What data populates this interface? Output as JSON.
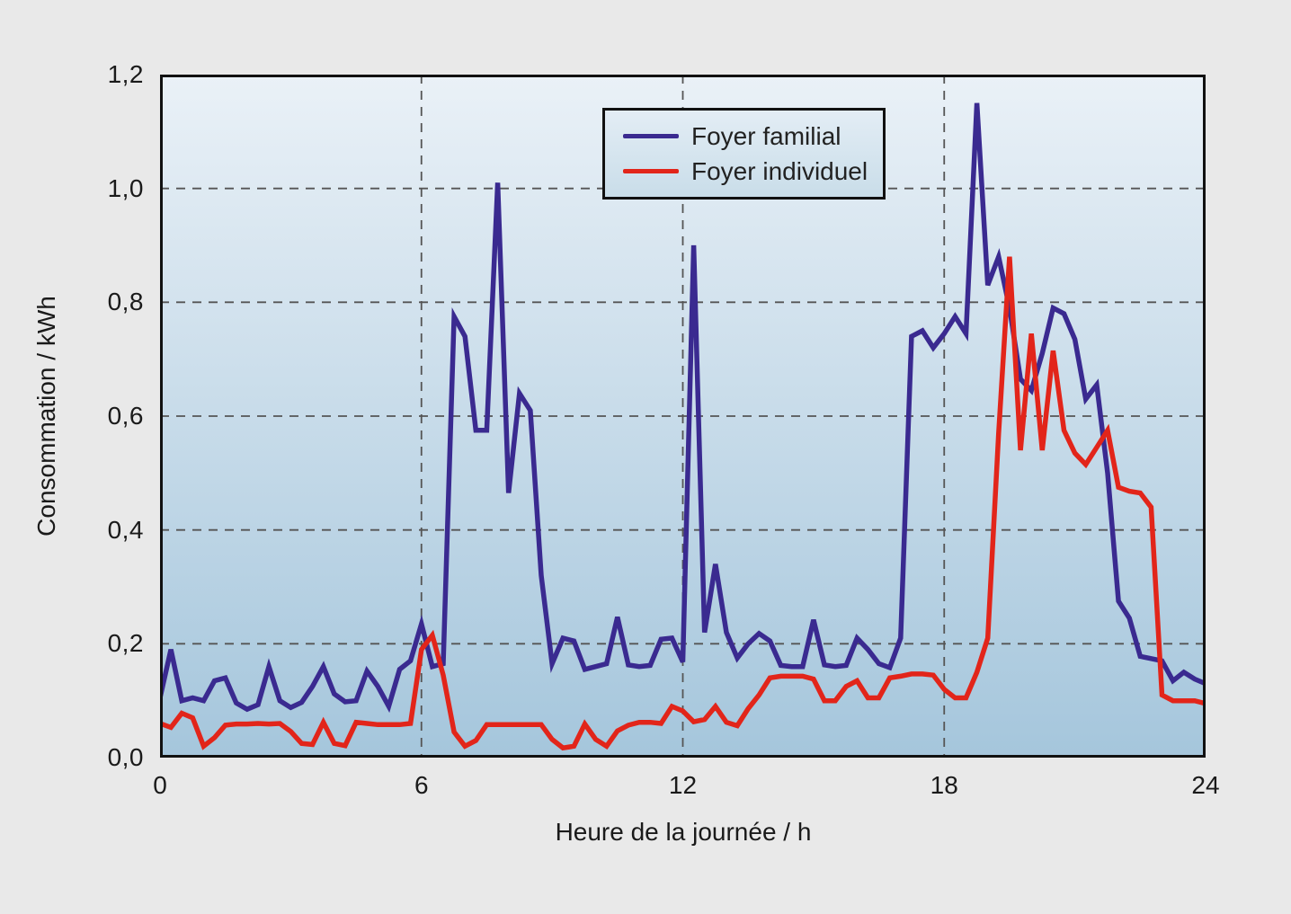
{
  "figure": {
    "outer_background": "#e9e9e9",
    "plot_bg_top": "#eaf1f7",
    "plot_bg_bottom": "#a5c6dc",
    "border_color": "#111111",
    "grid_color": "#555555",
    "text_color": "#1a1a1a"
  },
  "axes": {
    "y_title": "Consommation / kWh",
    "x_title": "Heure de la journée / h",
    "y_tick_labels": [
      "0,0",
      "0,2",
      "0,4",
      "0,6",
      "0,8",
      "1,0",
      "1,2"
    ],
    "x_tick_labels": [
      "0",
      "6",
      "12",
      "18",
      "24"
    ]
  },
  "chart_data": {
    "type": "line",
    "title": "",
    "xlabel": "Heure de la journée / h",
    "ylabel": "Consommation / kWh",
    "xlim": [
      0,
      24
    ],
    "ylim": [
      0,
      1.2
    ],
    "x_tick_values": [
      0,
      6,
      12,
      18,
      24
    ],
    "y_tick_values": [
      0,
      0.2,
      0.4,
      0.6,
      0.8,
      1.0,
      1.2
    ],
    "grid": "dashed, horizontal at 0.2-1.0 and vertical at 6/12/18",
    "legend_position": "top-center",
    "x_step_hours": 0.25,
    "x": [
      0,
      0.25,
      0.5,
      0.75,
      1,
      1.25,
      1.5,
      1.75,
      2,
      2.25,
      2.5,
      2.75,
      3,
      3.25,
      3.5,
      3.75,
      4,
      4.25,
      4.5,
      4.75,
      5,
      5.25,
      5.5,
      5.75,
      6,
      6.25,
      6.5,
      6.75,
      7,
      7.25,
      7.5,
      7.75,
      8,
      8.25,
      8.5,
      8.75,
      9,
      9.25,
      9.5,
      9.75,
      10,
      10.25,
      10.5,
      10.75,
      11,
      11.25,
      11.5,
      11.75,
      12,
      12.25,
      12.5,
      12.75,
      13,
      13.25,
      13.5,
      13.75,
      14,
      14.25,
      14.5,
      14.75,
      15,
      15.25,
      15.5,
      15.75,
      16,
      16.25,
      16.5,
      16.75,
      17,
      17.25,
      17.5,
      17.75,
      18,
      18.25,
      18.5,
      18.75,
      19,
      19.25,
      19.5,
      19.75,
      20,
      20.25,
      20.5,
      20.75,
      21,
      21.25,
      21.5,
      21.75,
      22,
      22.25,
      22.5,
      22.75,
      23,
      23.25,
      23.5,
      23.75,
      24
    ],
    "series": [
      {
        "name": "Foyer familial",
        "color": "#3a2a90",
        "values": [
          0.105,
          0.19,
          0.1,
          0.105,
          0.1,
          0.135,
          0.14,
          0.096,
          0.085,
          0.093,
          0.16,
          0.1,
          0.088,
          0.097,
          0.125,
          0.16,
          0.112,
          0.098,
          0.1,
          0.152,
          0.125,
          0.09,
          0.155,
          0.17,
          0.235,
          0.16,
          0.165,
          0.775,
          0.74,
          0.575,
          0.575,
          1.01,
          0.465,
          0.64,
          0.61,
          0.32,
          0.165,
          0.21,
          0.205,
          0.155,
          0.16,
          0.165,
          0.247,
          0.163,
          0.16,
          0.162,
          0.208,
          0.21,
          0.168,
          0.9,
          0.22,
          0.34,
          0.22,
          0.175,
          0.2,
          0.218,
          0.205,
          0.162,
          0.16,
          0.16,
          0.242,
          0.163,
          0.16,
          0.162,
          0.21,
          0.19,
          0.165,
          0.158,
          0.21,
          0.74,
          0.75,
          0.72,
          0.745,
          0.775,
          0.745,
          1.15,
          0.83,
          0.88,
          0.79,
          0.665,
          0.645,
          0.71,
          0.79,
          0.78,
          0.735,
          0.63,
          0.655,
          0.5,
          0.275,
          0.245,
          0.178,
          0.174,
          0.17,
          0.135,
          0.15,
          0.138,
          0.13
        ]
      },
      {
        "name": "Foyer individuel",
        "color": "#e2251a",
        "values": [
          0.06,
          0.053,
          0.078,
          0.07,
          0.02,
          0.035,
          0.057,
          0.059,
          0.059,
          0.06,
          0.059,
          0.06,
          0.046,
          0.025,
          0.023,
          0.062,
          0.025,
          0.021,
          0.062,
          0.06,
          0.058,
          0.058,
          0.058,
          0.06,
          0.19,
          0.215,
          0.145,
          0.045,
          0.02,
          0.03,
          0.058,
          0.058,
          0.058,
          0.058,
          0.058,
          0.058,
          0.032,
          0.017,
          0.02,
          0.059,
          0.032,
          0.02,
          0.047,
          0.057,
          0.062,
          0.062,
          0.06,
          0.09,
          0.082,
          0.063,
          0.067,
          0.09,
          0.062,
          0.056,
          0.086,
          0.11,
          0.14,
          0.143,
          0.143,
          0.143,
          0.138,
          0.1,
          0.1,
          0.125,
          0.135,
          0.105,
          0.105,
          0.14,
          0.143,
          0.147,
          0.147,
          0.145,
          0.12,
          0.105,
          0.105,
          0.15,
          0.21,
          0.57,
          0.88,
          0.54,
          0.745,
          0.54,
          0.715,
          0.575,
          0.535,
          0.515,
          0.545,
          0.575,
          0.475,
          0.468,
          0.465,
          0.44,
          0.11,
          0.1,
          0.1,
          0.1,
          0.095
        ]
      }
    ]
  }
}
